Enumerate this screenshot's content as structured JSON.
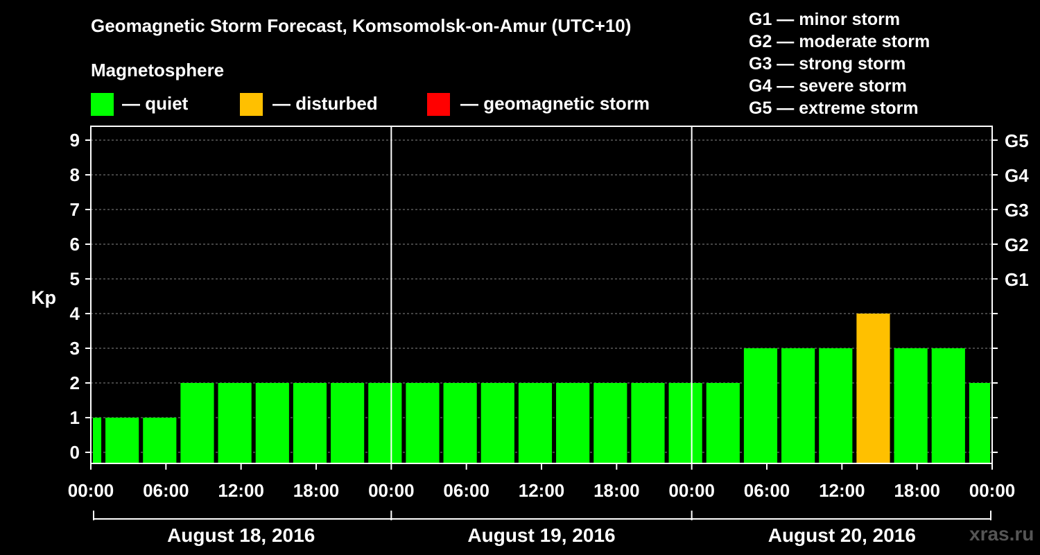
{
  "title": "Geomagnetic Storm Forecast, Komsomolsk-on-Amur (UTC+10)",
  "subtitle": "Magnetosphere",
  "legend": [
    {
      "label": "— quiet",
      "color": "#00ff00"
    },
    {
      "label": "— disturbed",
      "color": "#ffc000"
    },
    {
      "label": "— geomagnetic storm",
      "color": "#ff0000"
    }
  ],
  "storm_scale": [
    "G1 — minor storm",
    "G2 — moderate storm",
    "G3 — strong storm",
    "G4 — severe storm",
    "G5 — extreme storm"
  ],
  "watermark": "xras.ru",
  "chart_data": {
    "type": "bar",
    "title": "Geomagnetic Storm Forecast, Komsomolsk-on-Amur (UTC+10)",
    "ylabel": "Kp",
    "xlabel": "",
    "ylim": [
      0,
      9
    ],
    "yticks": [
      0,
      1,
      2,
      3,
      4,
      5,
      6,
      7,
      8,
      9
    ],
    "y2_ticks": [
      {
        "kp": 5,
        "label": "G1"
      },
      {
        "kp": 6,
        "label": "G2"
      },
      {
        "kp": 7,
        "label": "G3"
      },
      {
        "kp": 8,
        "label": "G4"
      },
      {
        "kp": 9,
        "label": "G5"
      }
    ],
    "x_tick_labels": [
      "00:00",
      "06:00",
      "12:00",
      "18:00",
      "00:00",
      "06:00",
      "12:00",
      "18:00",
      "00:00",
      "06:00",
      "12:00",
      "18:00",
      "00:00"
    ],
    "days": [
      "August 18, 2016",
      "August 19, 2016",
      "August 20, 2016"
    ],
    "interval_hours": 3,
    "bar_start_hours": [
      0,
      1,
      4,
      7,
      10,
      13,
      16,
      19,
      22,
      25,
      28,
      31,
      34,
      37,
      40,
      43,
      46,
      49,
      52,
      55,
      58,
      61,
      64,
      67,
      70
    ],
    "bar_end_hours": [
      1,
      4,
      7,
      10,
      13,
      16,
      19,
      22,
      25,
      28,
      31,
      34,
      37,
      40,
      43,
      46,
      49,
      52,
      55,
      58,
      61,
      64,
      67,
      70,
      72
    ],
    "values": [
      1,
      1,
      1,
      2,
      2,
      2,
      2,
      2,
      2,
      2,
      2,
      2,
      2,
      2,
      2,
      2,
      2,
      2,
      3,
      3,
      3,
      4,
      3,
      3,
      2
    ],
    "status": [
      "quiet",
      "quiet",
      "quiet",
      "quiet",
      "quiet",
      "quiet",
      "quiet",
      "quiet",
      "quiet",
      "quiet",
      "quiet",
      "quiet",
      "quiet",
      "quiet",
      "quiet",
      "quiet",
      "quiet",
      "quiet",
      "quiet",
      "quiet",
      "quiet",
      "disturbed",
      "quiet",
      "quiet",
      "quiet"
    ],
    "status_colors": {
      "quiet": "#00ff00",
      "disturbed": "#ffc000",
      "storm": "#ff0000"
    },
    "grid": true
  }
}
